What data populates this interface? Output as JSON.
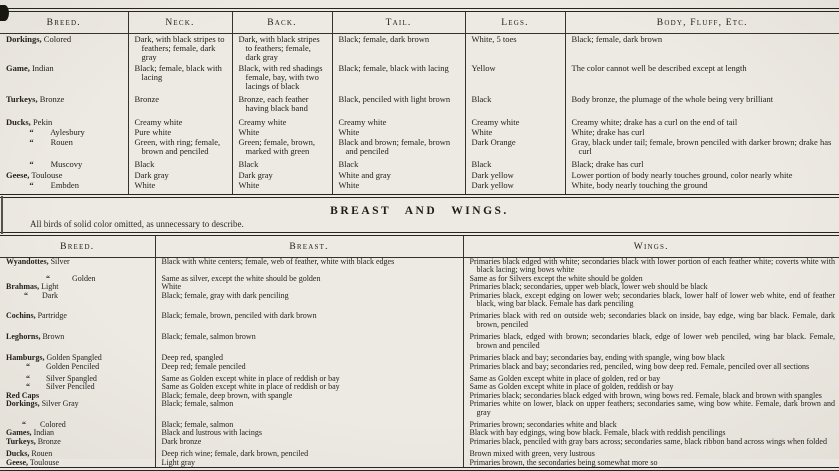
{
  "colors": {
    "paper": "#eae7e0",
    "ink": "#22211d"
  },
  "section": {
    "title": "BREAST  AND  WINGS.",
    "note": "All birds of solid color omitted, as unnecessary to describe."
  },
  "table1": {
    "headers": [
      "Breed.",
      "Neck.",
      "Back.",
      "Tail.",
      "Legs.",
      "Body, Fluff, Etc."
    ],
    "rows": [
      {
        "breed_bold": "Dorkings,",
        "breed_rest": " Colored",
        "neck": "Dark, with black stripes to feathers; female, dark gray",
        "back": "Dark, with black stripes to feathers; female, dark gray",
        "tail": "Black; female, dark brown",
        "legs": "White, 5 toes",
        "body": "Black; female, dark brown"
      },
      {
        "breed_bold": "Game,",
        "breed_rest": " Indian",
        "neck": "Black; female, black with lacing",
        "back": "Black, with red shadings female, bay, with two lacings of black",
        "tail": "Black; female, black with lacing",
        "legs": "Yellow",
        "body": "The color cannot well be described except at length"
      },
      {
        "breed_bold": "Turkeys,",
        "breed_rest": " Bronze",
        "neck": "Bronze",
        "back": "Bronze, each feather having black band",
        "tail": "Black, penciled with light brown",
        "legs": "Black",
        "body": "Body bronze, the plumage of the whole being very brilliant"
      },
      {
        "breed_bold": "Ducks,",
        "breed_rest": " Pekin",
        "neck": "Creamy white",
        "back": "Creamy white",
        "tail": "Creamy white",
        "legs": "Creamy white",
        "body": "Creamy white; drake has a curl on the end of tail"
      },
      {
        "breed_bold": "           “",
        "breed_rest": "        Aylesbury",
        "neck": "Pure white",
        "back": "White",
        "tail": "White",
        "legs": "White",
        "body": "White; drake has curl"
      },
      {
        "breed_bold": "           “",
        "breed_rest": "        Rouen",
        "neck": "Green, with ring; female, brown and penciled",
        "back": "Green; female, brown, marked with green",
        "tail": "Black and brown; female, brown and penciled",
        "legs": "Dark Orange",
        "body": "Gray, black under tail; female, brown penciled with darker brown; drake has curl"
      },
      {
        "breed_bold": "           “",
        "breed_rest": "        Muscovy",
        "neck": "Black",
        "back": "Black",
        "tail": "Black",
        "legs": "Black",
        "body": "Black; drake has curl"
      },
      {
        "breed_bold": "Geese,",
        "breed_rest": " Toulouse",
        "neck": "Dark gray",
        "back": "Dark gray",
        "tail": "White and gray",
        "legs": "Dark yellow",
        "body": "Lower portion of body nearly touches ground, color nearly white"
      },
      {
        "breed_bold": "           “",
        "breed_rest": "        Embden",
        "neck": "White",
        "back": "White",
        "tail": "White",
        "legs": "Dark yellow",
        "body": "White, body nearly touching the ground"
      }
    ]
  },
  "table2": {
    "headers": [
      "Breed.",
      "Breast.",
      "Wings."
    ],
    "rows": [
      {
        "breed_bold": "Wyandottes,",
        "breed_rest": " Silver",
        "breast": "Black with white centers; female, web of feather, white with black edges",
        "wings": "Primaries black edged with white; secondaries black with lower portion of each feather white; coverts white with black lacing; wing bows white"
      },
      {
        "breed_bold": "                    “",
        "breed_rest": "           Golden",
        "breast": "Same as silver, except the white should be golden",
        "wings": "Same as for Silvers except the white should be golden"
      },
      {
        "breed_bold": "Brahmas,",
        "breed_rest": " Light",
        "breast": "White",
        "wings": "Primaries black; secondaries, upper web black, lower web should be black"
      },
      {
        "breed_bold": "         “",
        "breed_rest": "       Dark",
        "breast": "Black; female, gray with dark penciling",
        "wings": "Primaries black, except edging on lower web; secondaries black, lower half of lower web white, end of feather black, wing bar black.   Female has dark penciling"
      },
      {
        "breed_bold": "Cochins,",
        "breed_rest": " Partridge",
        "breast": "Black; female, brown, penciled with dark brown",
        "wings": "Primaries black with red on outside web; secondaries black on inside, bay edge, wing bar black.   Female, dark brown, penciled"
      },
      {
        "breed_bold": "Leghorns,",
        "breed_rest": " Brown",
        "breast": "Black; female, salmon brown",
        "wings": "Primaries black, edged with brown; secondaries black, edge of lower web penciled, wing bar black.   Female, brown and penciled"
      },
      {
        "breed_bold": "Hamburgs,",
        "breed_rest": " Golden Spangled",
        "breast": "Deep red, spangled",
        "wings": "Primaries black and bay; secondaries bay, ending with spangle, wing bow black"
      },
      {
        "breed_bold": "          “",
        "breed_rest": "        Golden Penciled",
        "breast": "Deep red; female penciled",
        "wings": "Primaries black and bay; secondaries red, penciled, wing bow deep red.   Female, penciled over all sections"
      },
      {
        "breed_bold": "          “",
        "breed_rest": "        Silver Spangled",
        "breast": "Same as Golden except white in place of reddish or bay",
        "wings": "Same as Golden except white in place of golden, red or bay"
      },
      {
        "breed_bold": "          “",
        "breed_rest": "        Silver Penciled",
        "breast": "Same as Golden except white in place of reddish or bay",
        "wings": "Same as Golden except white in place of golden, reddish or bay"
      },
      {
        "breed_bold": "Red Caps",
        "breed_rest": "",
        "breast": "Black; female, deep brown, with spangle",
        "wings": "Primaries black; secondaries black edged with brown, wing bows red.   Female, black and brown with spangles"
      },
      {
        "breed_bold": "Dorkings,",
        "breed_rest": " Silver Gray",
        "breast": "Black; female, salmon",
        "wings": "Primaries white on lower, black on upper feathers; secondaries same, wing bow white.   Female, dark brown and gray"
      },
      {
        "breed_bold": "        “",
        "breed_rest": "       Colored",
        "breast": "Black; female, salmon",
        "wings": "Primaries brown; secondaries white and black"
      },
      {
        "breed_bold": "Games,",
        "breed_rest": " Indian",
        "breast": "Black and lustrous with lacings",
        "wings": "Black with bay edgings, wing bow black.   Female, black with reddish pencilings"
      },
      {
        "breed_bold": "Turkeys,",
        "breed_rest": " Bronze",
        "breast": "Dark bronze",
        "wings": "Primaries black, penciled with gray bars across; secondaries same, black ribbon band across wings when folded"
      },
      {
        "breed_bold": "Ducks,",
        "breed_rest": " Rouen",
        "breast": "Deep rich wine; female, dark brown, penciled",
        "wings": "Brown mixed with green, very lustrous"
      },
      {
        "breed_bold": "Geese,",
        "breed_rest": " Toulouse",
        "breast": "Light gray",
        "wings": "Primaries brown, the secondaries being somewhat more so"
      }
    ]
  }
}
